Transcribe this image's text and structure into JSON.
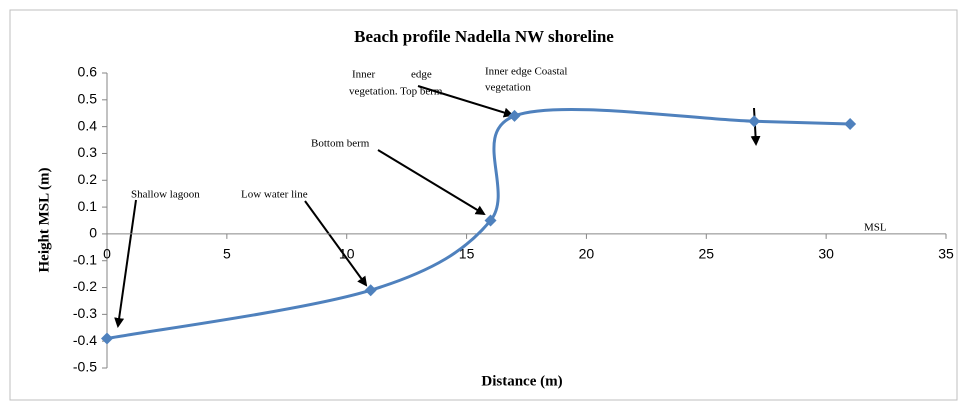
{
  "chart_data": {
    "type": "line",
    "title": "Beach profile Nadella NW shoreline",
    "x_label": "Distance (m)",
    "y_label": "Height MSL (m)",
    "series": [
      {
        "name": "Beach profile",
        "color": "#4f81bd",
        "x": [
          0,
          11,
          16,
          17,
          27,
          31
        ],
        "values": [
          -0.39,
          -0.21,
          0.05,
          0.44,
          0.42,
          0.41
        ]
      }
    ],
    "xlim": [
      0,
      35
    ],
    "xticks": [
      0,
      5,
      10,
      15,
      20,
      25,
      30,
      35
    ],
    "ylim": [
      -0.5,
      0.6
    ],
    "yticks": [
      -0.5,
      -0.4,
      -0.3,
      -0.2,
      -0.1,
      0,
      0.1,
      0.2,
      0.3,
      0.4,
      0.5,
      0.6
    ],
    "smooth": true,
    "annotations": [
      "Shallow  lagoon",
      "Low water line",
      "Bottom berm",
      "Inner             edge",
      "vegetation. Top berm",
      "Inner edge Coastal",
      "vegetation",
      "MSL"
    ]
  }
}
